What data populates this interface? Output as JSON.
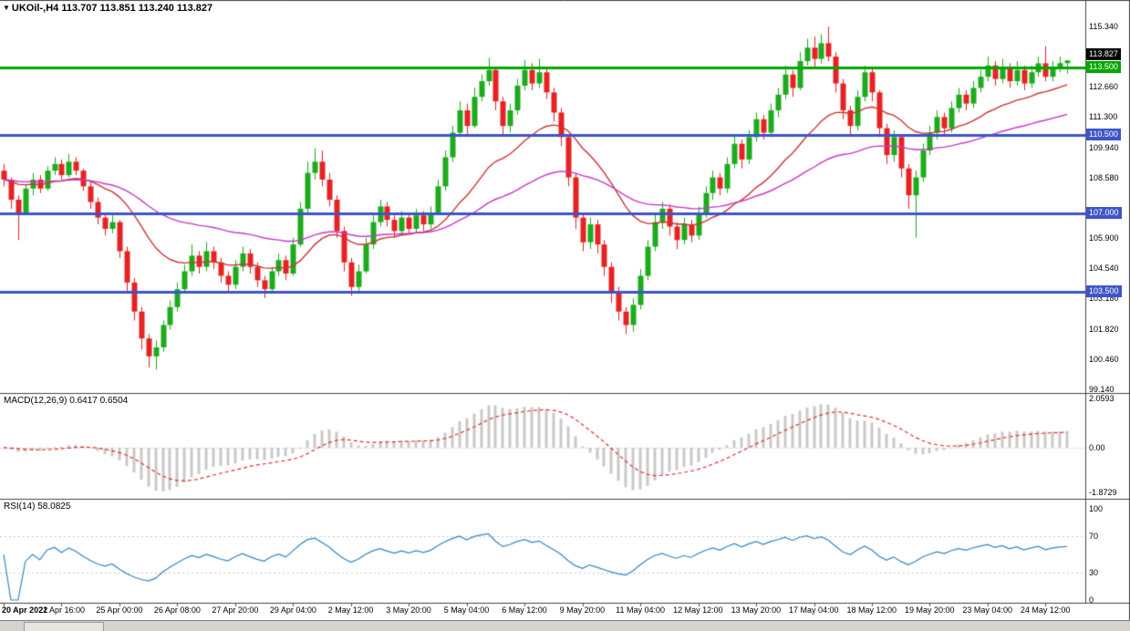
{
  "header": {
    "arrow": "▼",
    "symbol_period": "UKOil-,H4",
    "ohlc": "113.707 113.851 113.240 113.827"
  },
  "chart_data": {
    "type": "candlestick",
    "symbol": "UKOil-",
    "timeframe": "H4",
    "ohlc_display": {
      "open": "113.707",
      "high": "113.851",
      "low": "113.240",
      "close": "113.827"
    },
    "colors": {
      "bull": "#1cab1c",
      "bear": "#e62222",
      "background": "#ffffff"
    },
    "price_axis": {
      "min": 99.0,
      "max": 116.45,
      "labels": [
        "115.340",
        "112.660",
        "111.300",
        "109.940",
        "108.580",
        "105.900",
        "104.540",
        "103.180",
        "101.820",
        "100.460",
        "99.140"
      ]
    },
    "levels": [
      {
        "value": 113.5,
        "color": "#00a800",
        "label": "113.500"
      },
      {
        "value": 110.5,
        "color": "#3d55c8",
        "label": "110.500"
      },
      {
        "value": 107.0,
        "color": "#3d55c8",
        "label": "107.000"
      },
      {
        "value": 103.5,
        "color": "#3d55c8",
        "label": "103.500"
      }
    ],
    "last_price": {
      "value": 113.827,
      "label": "113.827",
      "box_color": "#000000"
    },
    "moving_averages": [
      {
        "name": "ma-fast",
        "period": 21,
        "color": "#cd3333"
      },
      {
        "name": "ma-slow",
        "period": 55,
        "color": "#c837c8"
      }
    ],
    "macd": {
      "label": "MACD(12,26,9) 0.6417 0.6504",
      "fast": 12,
      "slow": 26,
      "signal": 9,
      "axis_labels": [
        "2.0593",
        "0.00",
        "-1.8729"
      ],
      "axis_values": [
        2.0593,
        0,
        -1.8729
      ],
      "hist_color": "#c9c9c9",
      "signal_color": "#e03030"
    },
    "rsi": {
      "label": "RSI(14) 58.0825",
      "period": 14,
      "axis_labels": [
        "100",
        "70",
        "30",
        "0"
      ],
      "axis_values": [
        100,
        70,
        30,
        0
      ],
      "line_color": "#2f86c4"
    },
    "bars_per_label": 8,
    "time_labels": [
      "20 Apr 2022",
      "21 Apr 16:00",
      "25 Apr 00:00",
      "26 Apr 08:00",
      "27 Apr 20:00",
      "29 Apr 04:00",
      "2 May 12:00",
      "3 May 20:00",
      "5 May 04:00",
      "6 May 12:00",
      "9 May 20:00",
      "11 May 04:00",
      "12 May 12:00",
      "13 May 20:00",
      "17 May 04:00",
      "18 May 12:00",
      "19 May 20:00",
      "23 May 04:00",
      "24 May 12:00"
    ],
    "candles": [
      [
        108.9,
        109.2,
        108.2,
        108.5
      ],
      [
        108.5,
        108.6,
        107.2,
        107.6
      ],
      [
        107.6,
        107.8,
        105.8,
        107.0
      ],
      [
        107.0,
        108.3,
        106.9,
        108.1
      ],
      [
        108.1,
        108.8,
        107.8,
        108.5
      ],
      [
        108.5,
        108.7,
        107.9,
        108.1
      ],
      [
        108.1,
        109.1,
        108.0,
        108.9
      ],
      [
        108.9,
        109.5,
        108.7,
        109.2
      ],
      [
        109.2,
        109.4,
        108.5,
        108.7
      ],
      [
        108.7,
        109.65,
        108.6,
        109.3
      ],
      [
        109.3,
        109.5,
        108.7,
        108.9
      ],
      [
        108.9,
        109.0,
        108.0,
        108.2
      ],
      [
        108.2,
        108.4,
        107.2,
        107.5
      ],
      [
        107.5,
        107.7,
        106.5,
        106.8
      ],
      [
        106.8,
        107.0,
        106.0,
        106.3
      ],
      [
        106.3,
        106.9,
        106.1,
        106.6
      ],
      [
        106.6,
        106.7,
        105.0,
        105.3
      ],
      [
        105.3,
        105.5,
        103.5,
        103.9
      ],
      [
        103.9,
        104.1,
        102.2,
        102.6
      ],
      [
        102.6,
        102.8,
        100.9,
        101.4
      ],
      [
        101.4,
        101.6,
        100.1,
        100.6
      ],
      [
        100.6,
        101.3,
        100.0,
        101.0
      ],
      [
        101.0,
        102.2,
        100.8,
        102.0
      ],
      [
        102.0,
        103.1,
        101.8,
        102.8
      ],
      [
        102.8,
        103.9,
        102.6,
        103.6
      ],
      [
        103.6,
        104.7,
        103.4,
        104.4
      ],
      [
        104.4,
        105.6,
        104.2,
        105.1
      ],
      [
        105.1,
        105.3,
        104.3,
        104.6
      ],
      [
        104.6,
        105.7,
        104.4,
        105.3
      ],
      [
        105.3,
        105.5,
        104.5,
        104.8
      ],
      [
        104.8,
        105.0,
        103.9,
        104.2
      ],
      [
        104.2,
        104.4,
        103.5,
        103.8
      ],
      [
        103.8,
        104.9,
        103.6,
        104.6
      ],
      [
        104.6,
        105.5,
        104.4,
        105.2
      ],
      [
        105.2,
        105.4,
        104.3,
        104.6
      ],
      [
        104.6,
        104.8,
        103.7,
        104.0
      ],
      [
        104.0,
        104.2,
        103.2,
        103.6
      ],
      [
        103.6,
        104.6,
        103.4,
        104.4
      ],
      [
        104.4,
        105.2,
        104.2,
        104.9
      ],
      [
        104.9,
        105.1,
        104.0,
        104.3
      ],
      [
        104.3,
        105.9,
        104.2,
        105.6
      ],
      [
        105.6,
        107.5,
        105.5,
        107.2
      ],
      [
        107.2,
        109.3,
        107.0,
        108.8
      ],
      [
        108.8,
        109.9,
        108.5,
        109.3
      ],
      [
        109.3,
        109.8,
        108.2,
        108.5
      ],
      [
        108.5,
        108.8,
        107.3,
        107.6
      ],
      [
        107.6,
        107.8,
        105.9,
        106.2
      ],
      [
        106.2,
        106.4,
        104.4,
        104.8
      ],
      [
        104.8,
        105.0,
        103.3,
        103.7
      ],
      [
        103.7,
        104.7,
        103.4,
        104.4
      ],
      [
        104.4,
        105.9,
        104.3,
        105.6
      ],
      [
        105.6,
        106.9,
        105.4,
        106.6
      ],
      [
        106.6,
        107.6,
        106.4,
        107.3
      ],
      [
        107.3,
        107.5,
        106.4,
        106.7
      ],
      [
        106.7,
        106.9,
        105.9,
        106.2
      ],
      [
        106.2,
        107.1,
        106.0,
        106.8
      ],
      [
        106.8,
        107.0,
        106.1,
        106.3
      ],
      [
        106.3,
        107.2,
        106.1,
        106.9
      ],
      [
        106.9,
        107.1,
        106.2,
        106.5
      ],
      [
        106.5,
        107.3,
        106.3,
        107.0
      ],
      [
        107.0,
        108.5,
        106.9,
        108.2
      ],
      [
        108.2,
        109.8,
        108.0,
        109.5
      ],
      [
        109.5,
        110.9,
        109.3,
        110.6
      ],
      [
        110.6,
        112.0,
        110.4,
        111.6
      ],
      [
        111.6,
        111.9,
        110.5,
        110.9
      ],
      [
        110.9,
        112.6,
        110.8,
        112.2
      ],
      [
        112.2,
        113.2,
        112.0,
        112.9
      ],
      [
        112.9,
        113.94,
        112.7,
        113.4
      ],
      [
        113.4,
        113.5,
        111.6,
        112.0
      ],
      [
        112.0,
        112.2,
        110.5,
        110.9
      ],
      [
        110.9,
        111.9,
        110.6,
        111.6
      ],
      [
        111.6,
        113.0,
        111.4,
        112.7
      ],
      [
        112.7,
        113.85,
        112.5,
        113.4
      ],
      [
        113.4,
        113.7,
        112.5,
        112.8
      ],
      [
        112.8,
        113.9,
        112.6,
        113.3
      ],
      [
        113.3,
        113.5,
        112.1,
        112.4
      ],
      [
        112.4,
        112.6,
        111.1,
        111.5
      ],
      [
        111.5,
        111.7,
        110.0,
        110.4
      ],
      [
        110.4,
        110.5,
        108.2,
        108.6
      ],
      [
        108.6,
        108.8,
        106.3,
        106.8
      ],
      [
        106.8,
        107.0,
        105.3,
        105.7
      ],
      [
        105.7,
        106.8,
        105.4,
        106.5
      ],
      [
        106.5,
        106.7,
        105.2,
        105.6
      ],
      [
        105.6,
        105.8,
        104.2,
        104.6
      ],
      [
        104.6,
        104.8,
        103.0,
        103.5
      ],
      [
        103.5,
        103.7,
        102.2,
        102.6
      ],
      [
        102.6,
        102.8,
        101.6,
        102.0
      ],
      [
        102.0,
        103.2,
        101.7,
        102.9
      ],
      [
        102.9,
        104.5,
        102.7,
        104.2
      ],
      [
        104.2,
        105.8,
        104.0,
        105.5
      ],
      [
        105.5,
        107.0,
        105.3,
        106.6
      ],
      [
        106.6,
        107.5,
        106.3,
        107.2
      ],
      [
        107.2,
        107.4,
        106.0,
        106.4
      ],
      [
        106.4,
        106.6,
        105.4,
        105.8
      ],
      [
        105.8,
        106.8,
        105.6,
        106.5
      ],
      [
        106.5,
        106.7,
        105.7,
        106.0
      ],
      [
        106.0,
        107.3,
        105.8,
        107.0
      ],
      [
        107.0,
        108.2,
        106.8,
        107.9
      ],
      [
        107.9,
        108.9,
        107.6,
        108.6
      ],
      [
        108.6,
        108.8,
        107.8,
        108.1
      ],
      [
        108.1,
        109.5,
        107.9,
        109.2
      ],
      [
        109.2,
        110.5,
        109.0,
        110.1
      ],
      [
        110.1,
        110.3,
        109.0,
        109.4
      ],
      [
        109.4,
        110.7,
        109.2,
        110.4
      ],
      [
        110.4,
        111.5,
        110.2,
        111.2
      ],
      [
        111.2,
        111.4,
        110.3,
        110.6
      ],
      [
        110.6,
        111.9,
        110.4,
        111.6
      ],
      [
        111.6,
        112.6,
        111.3,
        112.3
      ],
      [
        112.3,
        113.6,
        112.1,
        113.2
      ],
      [
        113.2,
        113.4,
        112.2,
        112.6
      ],
      [
        112.6,
        114.2,
        112.5,
        113.8
      ],
      [
        113.8,
        114.8,
        113.6,
        114.4
      ],
      [
        114.4,
        114.9,
        113.5,
        113.9
      ],
      [
        113.9,
        115.0,
        113.7,
        114.6
      ],
      [
        114.6,
        115.34,
        113.8,
        114.0
      ],
      [
        114.0,
        114.2,
        112.4,
        112.8
      ],
      [
        112.8,
        113.0,
        111.2,
        111.6
      ],
      [
        111.6,
        111.8,
        110.5,
        110.9
      ],
      [
        110.9,
        112.5,
        110.7,
        112.2
      ],
      [
        112.2,
        113.6,
        112.0,
        113.3
      ],
      [
        113.3,
        113.5,
        112.0,
        112.4
      ],
      [
        112.4,
        112.5,
        110.4,
        110.8
      ],
      [
        110.8,
        111.0,
        109.2,
        109.6
      ],
      [
        109.6,
        110.7,
        109.3,
        110.4
      ],
      [
        110.4,
        110.5,
        108.6,
        109.0
      ],
      [
        109.0,
        109.2,
        107.2,
        107.8
      ],
      [
        107.8,
        108.9,
        105.9,
        108.6
      ],
      [
        108.6,
        110.1,
        108.4,
        109.8
      ],
      [
        109.8,
        110.9,
        109.6,
        110.6
      ],
      [
        110.6,
        111.6,
        110.3,
        111.3
      ],
      [
        111.3,
        111.5,
        110.5,
        110.8
      ],
      [
        110.8,
        112.0,
        110.6,
        111.7
      ],
      [
        111.7,
        112.6,
        111.5,
        112.3
      ],
      [
        112.3,
        112.5,
        111.6,
        111.9
      ],
      [
        111.9,
        112.9,
        111.7,
        112.6
      ],
      [
        112.6,
        113.4,
        112.4,
        113.1
      ],
      [
        113.1,
        114.0,
        112.9,
        113.6
      ],
      [
        113.6,
        113.8,
        112.7,
        113.0
      ],
      [
        113.0,
        113.9,
        112.8,
        113.5
      ],
      [
        113.5,
        113.7,
        112.6,
        112.9
      ],
      [
        112.9,
        113.8,
        112.7,
        113.4
      ],
      [
        113.4,
        113.6,
        112.5,
        112.8
      ],
      [
        112.8,
        113.6,
        112.6,
        113.3
      ],
      [
        113.3,
        114.0,
        113.1,
        113.7
      ],
      [
        113.7,
        114.47,
        112.9,
        113.1
      ],
      [
        113.1,
        113.8,
        112.9,
        113.5
      ],
      [
        113.5,
        114.0,
        113.3,
        113.707
      ],
      [
        113.707,
        113.851,
        113.24,
        113.827
      ]
    ]
  }
}
